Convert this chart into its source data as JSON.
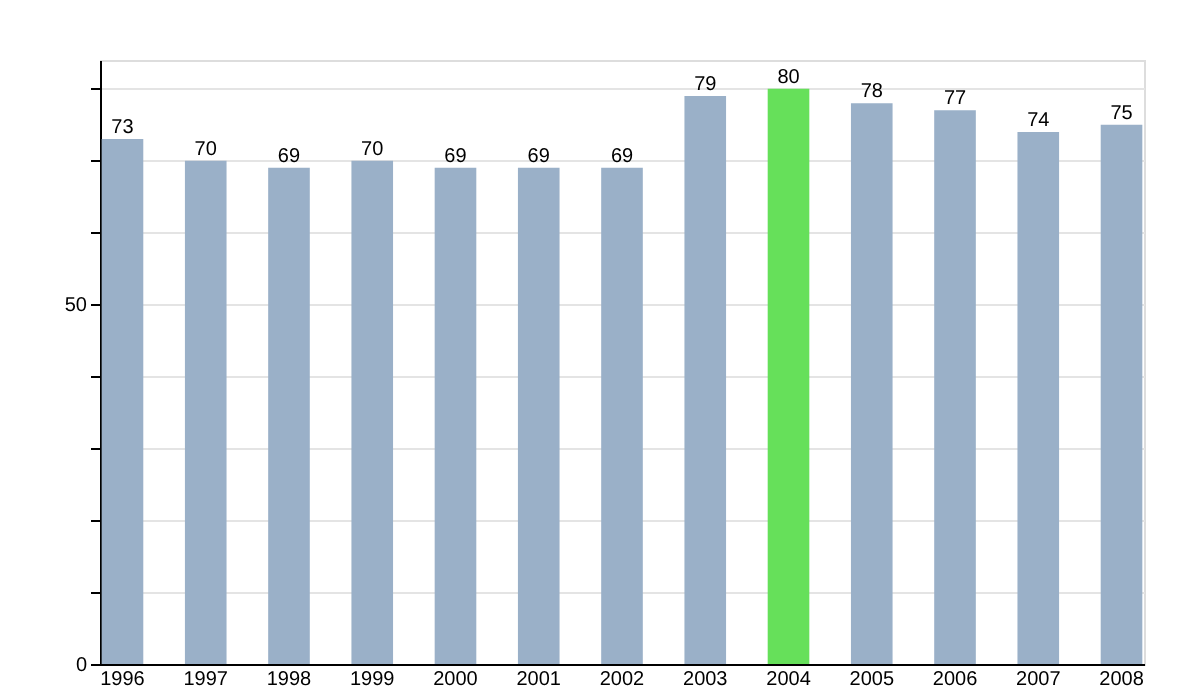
{
  "chart_data": {
    "type": "bar",
    "categories": [
      "1996",
      "1997",
      "1998",
      "1999",
      "2000",
      "2001",
      "2002",
      "2003",
      "2004",
      "2005",
      "2006",
      "2007",
      "2008"
    ],
    "values": [
      73,
      70,
      69,
      70,
      69,
      69,
      69,
      79,
      80,
      78,
      77,
      74,
      75
    ],
    "colors": [
      "#9ab0c8",
      "#9ab0c8",
      "#9ab0c8",
      "#9ab0c8",
      "#9ab0c8",
      "#9ab0c8",
      "#9ab0c8",
      "#9ab0c8",
      "#66e05a",
      "#9ab0c8",
      "#9ab0c8",
      "#9ab0c8",
      "#9ab0c8"
    ],
    "ylim": [
      0,
      84
    ],
    "yticks": [
      0,
      {
        "value": 10,
        "label": null
      },
      {
        "value": 20,
        "label": null
      },
      {
        "value": 30,
        "label": null
      },
      {
        "value": 40,
        "label": null
      },
      50,
      {
        "value": 60,
        "label": null
      },
      {
        "value": 70,
        "label": null
      },
      {
        "value": 80,
        "label": null
      }
    ],
    "grid": "y",
    "data_labels": true
  }
}
